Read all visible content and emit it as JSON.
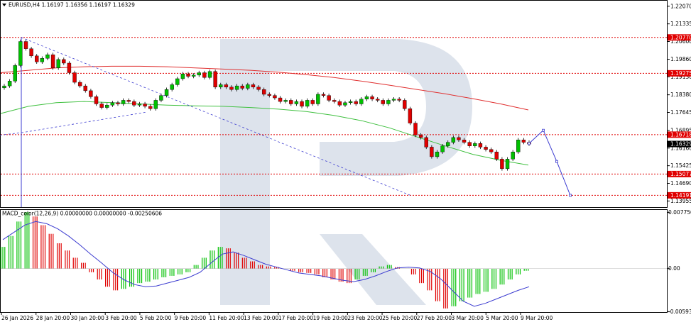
{
  "symbol_header": "EURUSD,H4  1.16197 1.16356 1.16197 1.16329",
  "macd_header": "MACD_color(12,26,9) 0.00000000 0.00000000 -0.00250606",
  "colors": {
    "bull": "#00c000",
    "bear": "#e00000",
    "ma_red": "#e03030",
    "ma_green": "#40c040",
    "forecast": "#3c3cd0",
    "level": "#e00000",
    "macd_signal": "#3c3cd0",
    "watermark": "#dde3ec"
  },
  "chart_data": [
    {
      "type": "candlestick",
      "panel": "price",
      "ylim": [
        1.137,
        1.223
      ],
      "y_ticks": [
        "1.22070",
        "1.21335",
        "1.20600",
        "1.19860",
        "1.19130",
        "1.18380",
        "1.17645",
        "1.16895",
        "1.16160",
        "1.15425",
        "1.14690",
        "1.13955"
      ],
      "price_labels": [
        {
          "text": "1.20770",
          "value": 1.2077,
          "highlight": true
        },
        {
          "text": "1.19275",
          "value": 1.19275,
          "highlight": true
        },
        {
          "text": "1.16718",
          "value": 1.16718,
          "highlight": true
        },
        {
          "text": "1.16329",
          "value": 1.16329,
          "highlight": "current"
        },
        {
          "text": "1.15077",
          "value": 1.15077,
          "highlight": true
        },
        {
          "text": "1.14191",
          "value": 1.14191,
          "highlight": true
        }
      ],
      "levels": [
        1.2077,
        1.19275,
        1.16718,
        1.15077,
        1.14191
      ],
      "closes": [
        1.1875,
        1.1895,
        1.196,
        1.206,
        1.203,
        1.2,
        1.1975,
        1.199,
        1.2005,
        1.195,
        1.1985,
        1.197,
        1.193,
        1.189,
        1.1875,
        1.1855,
        1.183,
        1.18,
        1.1785,
        1.1795,
        1.1805,
        1.18,
        1.1815,
        1.181,
        1.1795,
        1.18,
        1.179,
        1.178,
        1.1815,
        1.1835,
        1.186,
        1.188,
        1.1905,
        1.1925,
        1.1915,
        1.192,
        1.193,
        1.191,
        1.1935,
        1.187,
        1.188,
        1.187,
        1.186,
        1.1875,
        1.1865,
        1.188,
        1.187,
        1.186,
        1.184,
        1.1835,
        1.1825,
        1.181,
        1.1815,
        1.18,
        1.181,
        1.179,
        1.1815,
        1.18,
        1.184,
        1.1835,
        1.1815,
        1.181,
        1.1795,
        1.1805,
        1.181,
        1.18,
        1.182,
        1.183,
        1.182,
        1.1815,
        1.18,
        1.1815,
        1.182,
        1.1815,
        1.178,
        1.172,
        1.167,
        1.166,
        1.162,
        1.158,
        1.16,
        1.1625,
        1.164,
        1.166,
        1.165,
        1.164,
        1.1625,
        1.1635,
        1.162,
        1.161,
        1.16,
        1.157,
        1.153,
        1.157,
        1.16,
        1.165,
        1.164,
        1.1633
      ],
      "ma_red": [
        1.193,
        1.194,
        1.195,
        1.1955,
        1.1957,
        1.1957,
        1.1955,
        1.195,
        1.1945,
        1.194,
        1.1932,
        1.1922,
        1.191,
        1.1895,
        1.1878,
        1.186,
        1.1842,
        1.1822,
        1.18,
        1.1775
      ],
      "ma_green": [
        1.176,
        1.179,
        1.1805,
        1.181,
        1.1805,
        1.18,
        1.1795,
        1.1792,
        1.179,
        1.1785,
        1.1778,
        1.1768,
        1.1752,
        1.173,
        1.17,
        1.1662,
        1.1625,
        1.159,
        1.1565,
        1.1545
      ],
      "forecast": [
        {
          "date": "9 Mar 20:00",
          "value": 1.1635
        },
        {
          "date": "10 Mar",
          "value": 1.169
        },
        {
          "date": "10 Mar 20:00",
          "value": 1.156
        },
        {
          "date": "11 Mar",
          "value": 1.1419
        }
      ]
    },
    {
      "type": "histogram",
      "panel": "macd",
      "ylim": [
        -0.006,
        0.0081
      ],
      "y_ticks": [
        "0.007750",
        "0.00",
        "-0.005937"
      ],
      "values": [
        0.003,
        0.0045,
        0.0065,
        0.0078,
        0.0072,
        0.006,
        0.0048,
        0.0035,
        0.0025,
        0.0015,
        0.0008,
        -0.0005,
        -0.0015,
        -0.0025,
        -0.003,
        -0.0028,
        -0.0025,
        -0.002,
        -0.0018,
        -0.0015,
        -0.0012,
        -0.001,
        -0.0008,
        -0.0005,
        0.0005,
        0.0015,
        0.0025,
        0.003,
        0.0028,
        0.0022,
        0.0015,
        0.001,
        0.0005,
        0.0003,
        0.0002,
        0.0,
        -0.0003,
        -0.0005,
        -0.0006,
        -0.0008,
        -0.0012,
        -0.0015,
        -0.0018,
        -0.002,
        -0.0015,
        -0.001,
        -0.0005,
        0.0003,
        0.0005,
        0.0002,
        0.0,
        -0.0008,
        -0.002,
        -0.003,
        -0.0045,
        -0.0055,
        -0.0052,
        -0.0045,
        -0.004,
        -0.0035,
        -0.0032,
        -0.0028,
        -0.0022,
        -0.0015,
        -0.0008,
        -0.0003
      ],
      "signal": [
        0.004,
        0.005,
        0.006,
        0.0065,
        0.0062,
        0.0055,
        0.0045,
        0.0033,
        0.002,
        0.0008,
        -0.0005,
        -0.0015,
        -0.0022,
        -0.0025,
        -0.0024,
        -0.002,
        -0.0016,
        -0.0012,
        -0.0005,
        0.0008,
        0.002,
        0.0023,
        0.0018,
        0.0012,
        0.0006,
        0.0002,
        -0.0002,
        -0.0006,
        -0.0008,
        -0.001,
        -0.0013,
        -0.0016,
        -0.0018,
        -0.0015,
        -0.001,
        -0.0004,
        0.0001,
        0.0002,
        0.0001,
        -0.0004,
        -0.0015,
        -0.003,
        -0.0045,
        -0.0052,
        -0.0048,
        -0.0042,
        -0.0036,
        -0.003,
        -0.0025
      ]
    }
  ],
  "x_labels": [
    "26 Jan 2026",
    "28 Jan 20:00",
    "30 Jan 20:00",
    "3 Feb 20:00",
    "5 Feb 20:00",
    "9 Feb 20:00",
    "11 Feb 20:00",
    "13 Feb 20:00",
    "17 Feb 20:00",
    "19 Feb 20:00",
    "23 Feb 20:00",
    "25 Feb 20:00",
    "27 Feb 20:00",
    "3 Mar 20:00",
    "5 Mar 20:00",
    "9 Mar 20:00"
  ]
}
